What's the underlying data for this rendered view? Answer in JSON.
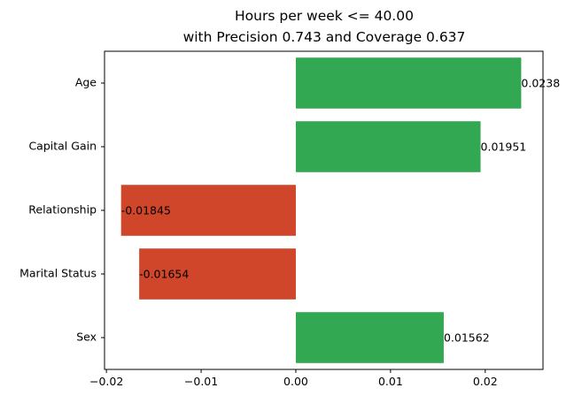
{
  "chart_data": {
    "type": "bar",
    "orientation": "horizontal",
    "title_line1": "Hours per week <= 40.00",
    "title_line2": "with Precision 0.743 and Coverage 0.637",
    "categories": [
      "Age",
      "Capital Gain",
      "Relationship",
      "Marital Status",
      "Sex"
    ],
    "values": [
      0.0238,
      0.01951,
      -0.01845,
      -0.01654,
      0.01562
    ],
    "value_labels": [
      "0.0238",
      "0.01951",
      "-0.01845",
      "-0.01654",
      "0.01562"
    ],
    "xlim": [
      -0.0202,
      0.0261
    ],
    "xticks": [
      -0.02,
      -0.01,
      0.0,
      0.01,
      0.02
    ],
    "xtick_labels": [
      "−0.02",
      "−0.01",
      "0.00",
      "0.01",
      "0.02"
    ],
    "colors": {
      "positive": "#33a853",
      "negative": "#d0462a",
      "axis": "#000000"
    },
    "grid": false,
    "legend": "none"
  }
}
